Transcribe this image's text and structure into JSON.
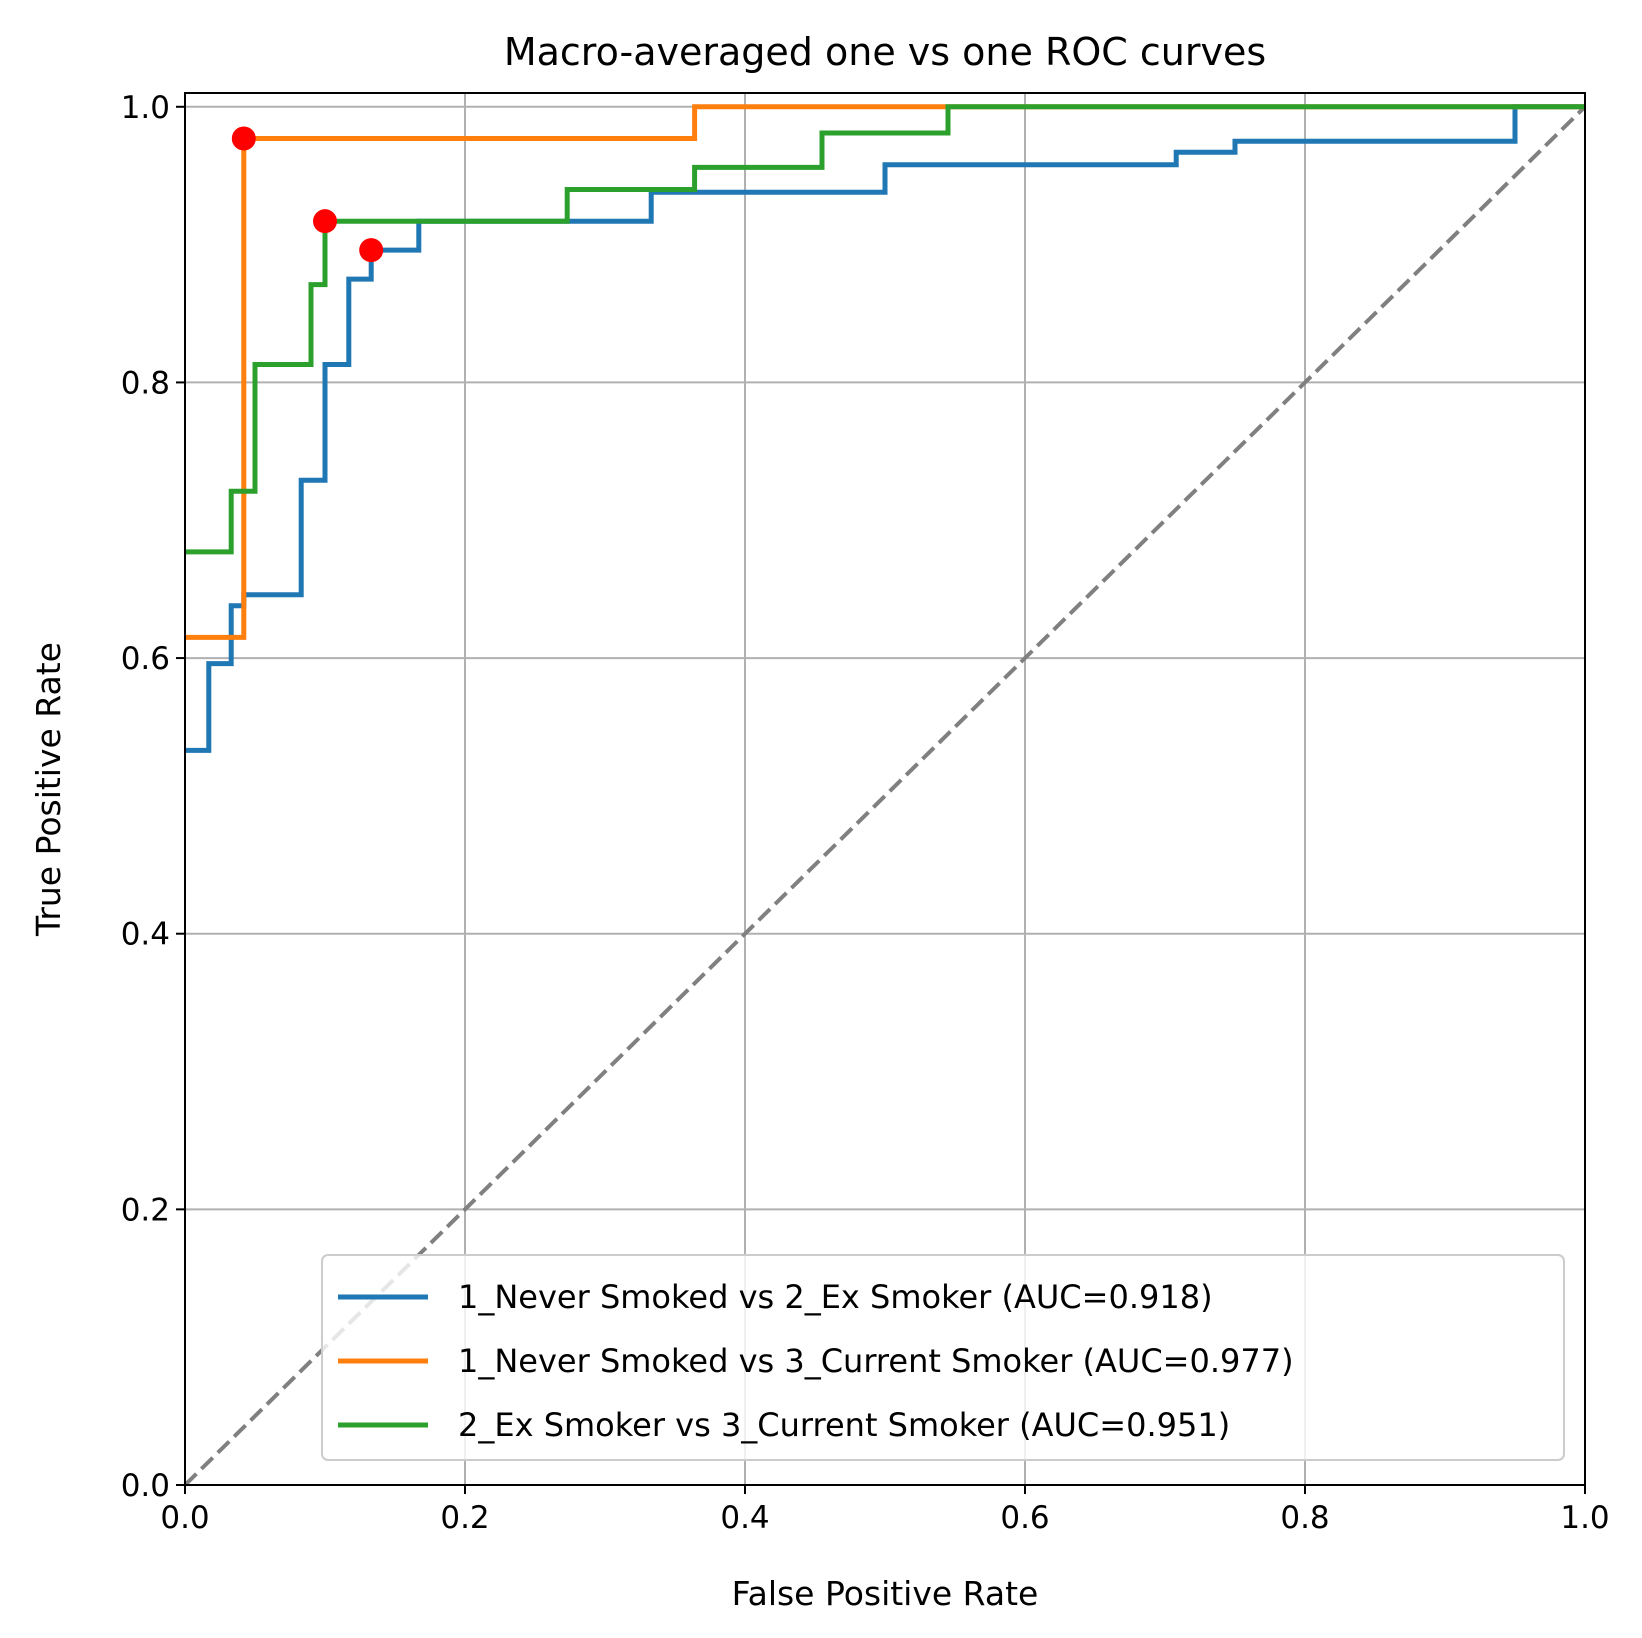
{
  "chart_data": {
    "type": "line",
    "title": "Macro-averaged one vs one ROC curves",
    "xlabel": "False Positive Rate",
    "ylabel": "True Positive Rate",
    "xlim": [
      0.0,
      1.0
    ],
    "ylim": [
      0.0,
      1.01
    ],
    "x_ticks": [
      0.0,
      0.2,
      0.4,
      0.6,
      0.8,
      1.0
    ],
    "y_ticks": [
      0.0,
      0.2,
      0.4,
      0.6,
      0.8,
      1.0
    ],
    "x_tick_labels": [
      "0.0",
      "0.2",
      "0.4",
      "0.6",
      "0.8",
      "1.0"
    ],
    "y_tick_labels": [
      "0.0",
      "0.2",
      "0.4",
      "0.6",
      "0.8",
      "1.0"
    ],
    "grid": true,
    "legend_position": "lower-right",
    "series": [
      {
        "name": "1_Never Smoked vs 2_Ex Smoker (AUC=0.918)",
        "color": "#1f77b4",
        "points": [
          [
            0.0,
            0.533
          ],
          [
            0.017,
            0.533
          ],
          [
            0.017,
            0.596
          ],
          [
            0.033,
            0.596
          ],
          [
            0.033,
            0.638
          ],
          [
            0.042,
            0.638
          ],
          [
            0.042,
            0.646
          ],
          [
            0.083,
            0.646
          ],
          [
            0.083,
            0.729
          ],
          [
            0.1,
            0.729
          ],
          [
            0.1,
            0.813
          ],
          [
            0.117,
            0.813
          ],
          [
            0.117,
            0.875
          ],
          [
            0.133,
            0.875
          ],
          [
            0.133,
            0.896
          ],
          [
            0.167,
            0.896
          ],
          [
            0.167,
            0.917
          ],
          [
            0.333,
            0.917
          ],
          [
            0.333,
            0.938
          ],
          [
            0.5,
            0.938
          ],
          [
            0.5,
            0.958
          ],
          [
            0.708,
            0.958
          ],
          [
            0.708,
            0.967
          ],
          [
            0.75,
            0.967
          ],
          [
            0.75,
            0.975
          ],
          [
            0.95,
            0.975
          ],
          [
            0.95,
            1.0
          ],
          [
            1.0,
            1.0
          ]
        ],
        "optimal_point": [
          0.133,
          0.896
        ]
      },
      {
        "name": "1_Never Smoked vs 3_Current Smoker (AUC=0.977)",
        "color": "#ff7f0e",
        "points": [
          [
            0.0,
            0.615
          ],
          [
            0.042,
            0.615
          ],
          [
            0.042,
            0.977
          ],
          [
            0.364,
            0.977
          ],
          [
            0.364,
            1.0
          ],
          [
            1.0,
            1.0
          ]
        ],
        "optimal_point": [
          0.042,
          0.977
        ]
      },
      {
        "name": "2_Ex Smoker vs 3_Current Smoker (AUC=0.951)",
        "color": "#2ca02c",
        "points": [
          [
            0.0,
            0.677
          ],
          [
            0.033,
            0.677
          ],
          [
            0.033,
            0.721
          ],
          [
            0.05,
            0.721
          ],
          [
            0.05,
            0.813
          ],
          [
            0.09,
            0.813
          ],
          [
            0.09,
            0.871
          ],
          [
            0.1,
            0.871
          ],
          [
            0.1,
            0.917
          ],
          [
            0.273,
            0.917
          ],
          [
            0.273,
            0.94
          ],
          [
            0.364,
            0.94
          ],
          [
            0.364,
            0.956
          ],
          [
            0.455,
            0.956
          ],
          [
            0.455,
            0.981
          ],
          [
            0.545,
            0.981
          ],
          [
            0.545,
            1.0
          ],
          [
            1.0,
            1.0
          ]
        ],
        "optimal_point": [
          0.1,
          0.917
        ]
      }
    ],
    "reference_line": {
      "x": [
        0.0,
        1.0
      ],
      "y": [
        0.0,
        1.0
      ],
      "color": "#808080",
      "style": "dashed"
    },
    "marker_color": "#ff0000"
  }
}
